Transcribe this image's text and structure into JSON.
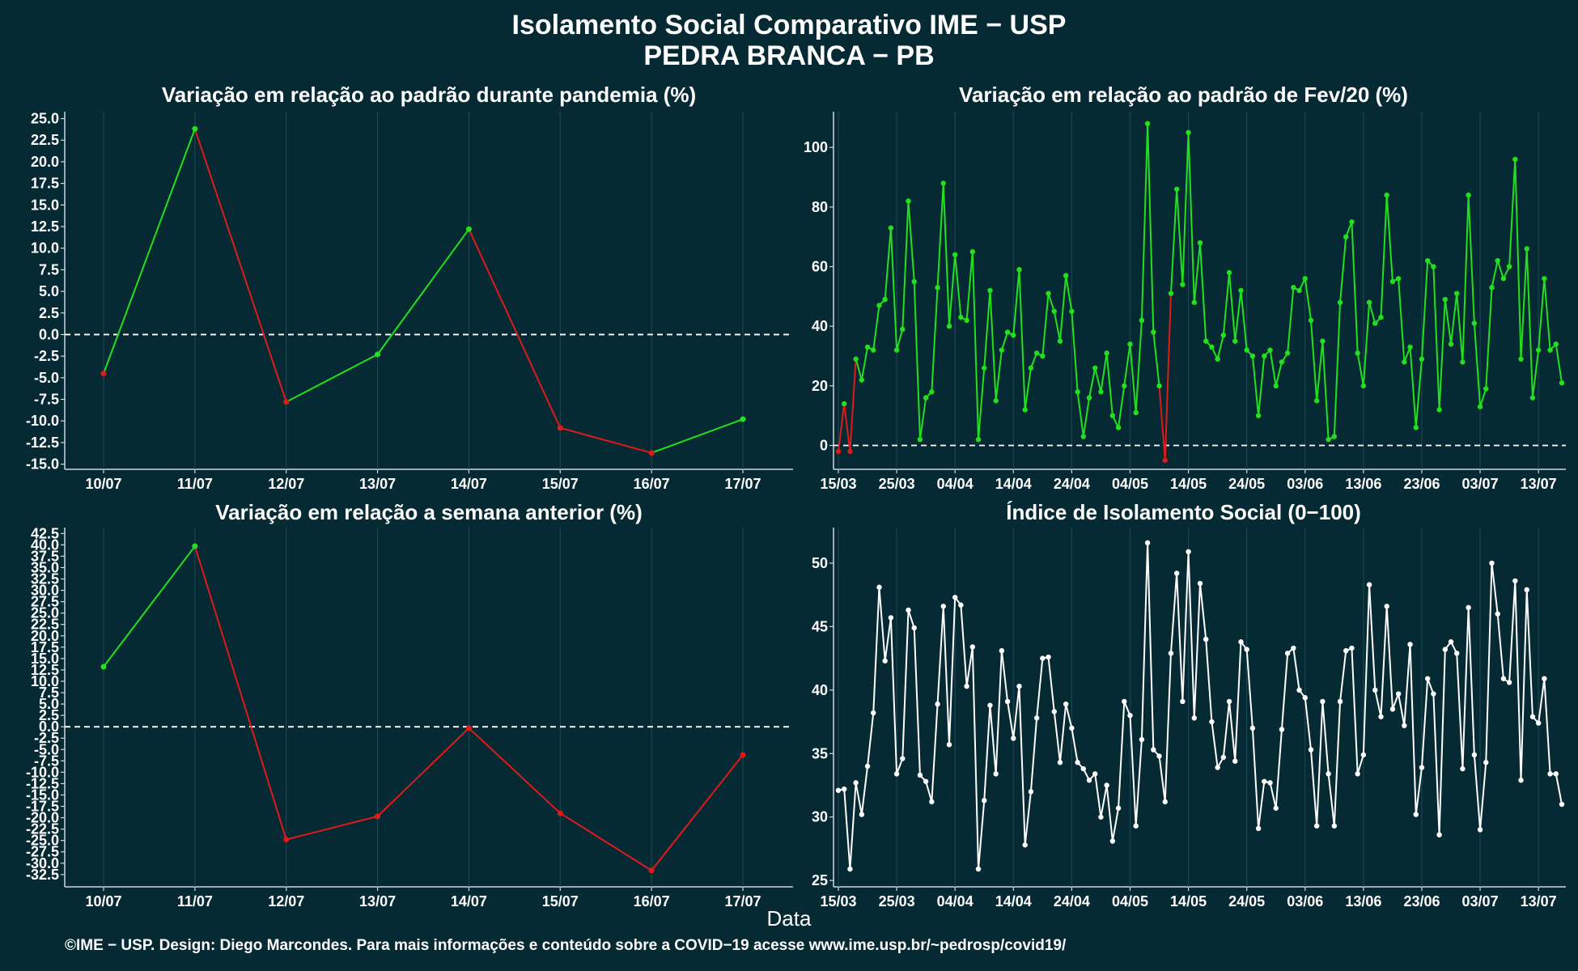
{
  "title": "Isolamento Social Comparativo IME − USP",
  "subtitle": "PEDRA BRANCA − PB",
  "xlabel": "Data",
  "footer": "©IME − USP. Design: Diego Marcondes. Para mais informações e conteúdo sobre a COVID−19 acesse www.ime.usp.br/~pedrosp/covid19/",
  "colors": {
    "background": "#062a33",
    "positive": "#22e01e",
    "negative": "#e01a1a",
    "index": "#ffffff",
    "grid": "#1f4a55"
  },
  "chart_data": [
    {
      "type": "line",
      "title": "Variação em relação ao padrão durante pandemia (%)",
      "categories": [
        "10/07",
        "11/07",
        "12/07",
        "13/07",
        "14/07",
        "15/07",
        "16/07",
        "17/07"
      ],
      "values": [
        -4.5,
        23.8,
        -7.8,
        -2.3,
        12.2,
        -10.8,
        -13.7,
        -9.8
      ],
      "ylim": [
        -15.6,
        25.8
      ],
      "yticks": [
        "25.0",
        "22.5",
        "20.0",
        "17.5",
        "15.0",
        "12.5",
        "10.0",
        "7.5",
        "5.0",
        "2.5",
        "0.0",
        "-2.5",
        "-5.0",
        "-7.5",
        "-10.0",
        "-12.5",
        "-15.0"
      ],
      "reference_line": 0,
      "color_rule": "green when value increases, red when value decreases"
    },
    {
      "type": "line",
      "title": "Variação em relação ao padrão de Fev/20 (%)",
      "x_start": "15/03",
      "x_end": "17/07",
      "xticks": [
        "15/03",
        "25/03",
        "04/04",
        "14/04",
        "24/04",
        "04/05",
        "14/05",
        "24/05",
        "03/06",
        "13/06",
        "23/06",
        "03/07",
        "13/07"
      ],
      "values": [
        -2,
        14,
        -2,
        29,
        22,
        33,
        32,
        47,
        49,
        73,
        32,
        39,
        82,
        55,
        2,
        16,
        18,
        53,
        88,
        40,
        64,
        43,
        42,
        65,
        2,
        26,
        52,
        15,
        32,
        38,
        37,
        59,
        12,
        26,
        31,
        30,
        51,
        45,
        35,
        57,
        45,
        18,
        3,
        16,
        26,
        18,
        31,
        10,
        6,
        20,
        34,
        11,
        42,
        108,
        38,
        20,
        -5,
        51,
        86,
        54,
        105,
        48,
        68,
        35,
        33,
        29,
        37,
        58,
        35,
        52,
        32,
        30,
        10,
        30,
        32,
        20,
        28,
        31,
        53,
        52,
        56,
        42,
        15,
        35,
        2,
        3,
        48,
        70,
        75,
        31,
        20,
        48,
        41,
        43,
        84,
        55,
        56,
        28,
        33,
        6,
        29,
        62,
        60,
        12,
        49,
        34,
        51,
        28,
        84,
        41,
        13,
        19,
        53,
        62,
        56,
        60,
        96,
        29,
        66,
        16,
        32,
        56,
        32,
        34,
        21
      ],
      "ylim": [
        -8,
        112
      ],
      "yticks": [
        0,
        20,
        40,
        60,
        80,
        100
      ],
      "reference_line": 0,
      "color_rule": "green when value is non-negative, red when negative"
    },
    {
      "type": "line",
      "title": "Variação em relação a semana anterior (%)",
      "categories": [
        "10/07",
        "11/07",
        "12/07",
        "13/07",
        "14/07",
        "15/07",
        "16/07",
        "17/07"
      ],
      "values": [
        13.2,
        39.7,
        -24.8,
        -19.7,
        -0.3,
        -19.0,
        -31.6,
        -6.2
      ],
      "ylim": [
        -35.2,
        43.8
      ],
      "yticks": [
        "42.5",
        "40.0",
        "37.5",
        "35.0",
        "32.5",
        "30.0",
        "27.5",
        "25.0",
        "22.5",
        "20.0",
        "17.5",
        "15.0",
        "12.5",
        "10.0",
        "7.5",
        "5.0",
        "2.5",
        "0.0",
        "-2.5",
        "-5.0",
        "-7.5",
        "-10.0",
        "-12.5",
        "-15.0",
        "-17.5",
        "-20.0",
        "-22.5",
        "-25.0",
        "-27.5",
        "-30.0",
        "-32.5"
      ],
      "reference_line": 0,
      "color_rule": "green when value is positive, red otherwise"
    },
    {
      "type": "line",
      "title": "Índice de Isolamento Social (0−100)",
      "x_start": "15/03",
      "x_end": "17/07",
      "xticks": [
        "15/03",
        "25/03",
        "04/04",
        "14/04",
        "24/04",
        "04/05",
        "14/05",
        "24/05",
        "03/06",
        "13/06",
        "23/06",
        "03/07",
        "13/07"
      ],
      "values": [
        32.1,
        32.2,
        25.9,
        32.7,
        30.2,
        34.0,
        38.2,
        48.1,
        42.3,
        45.7,
        33.4,
        34.6,
        46.3,
        44.9,
        33.3,
        32.8,
        31.2,
        38.9,
        46.6,
        35.7,
        47.3,
        46.7,
        40.3,
        43.4,
        25.9,
        31.3,
        38.8,
        33.4,
        43.1,
        39.1,
        36.2,
        40.3,
        27.8,
        32.0,
        37.8,
        42.5,
        42.6,
        38.3,
        34.3,
        38.9,
        37.0,
        34.3,
        33.8,
        32.9,
        33.4,
        30.0,
        32.5,
        28.1,
        30.7,
        39.1,
        38.0,
        29.3,
        36.1,
        51.6,
        35.3,
        34.8,
        31.2,
        42.9,
        49.2,
        39.1,
        50.9,
        37.8,
        48.4,
        44.0,
        37.5,
        33.9,
        34.7,
        39.1,
        34.4,
        43.8,
        43.2,
        37.0,
        29.1,
        32.8,
        32.7,
        30.7,
        36.9,
        42.9,
        43.3,
        40.0,
        39.4,
        35.3,
        29.3,
        39.1,
        33.4,
        29.3,
        39.1,
        43.1,
        43.3,
        33.4,
        34.9,
        48.3,
        40.0,
        37.9,
        46.6,
        38.5,
        39.7,
        37.2,
        43.6,
        30.2,
        33.9,
        40.9,
        39.7,
        28.6,
        43.2,
        43.8,
        42.9,
        33.8,
        46.5,
        34.9,
        29.0,
        34.3,
        50.0,
        46.0,
        40.9,
        40.6,
        48.6,
        32.9,
        47.9,
        37.9,
        37.4,
        40.9,
        33.4,
        33.4,
        31.0
      ],
      "ylim": [
        24.5,
        52.8
      ],
      "yticks": [
        25,
        30,
        35,
        40,
        45,
        50
      ]
    }
  ]
}
